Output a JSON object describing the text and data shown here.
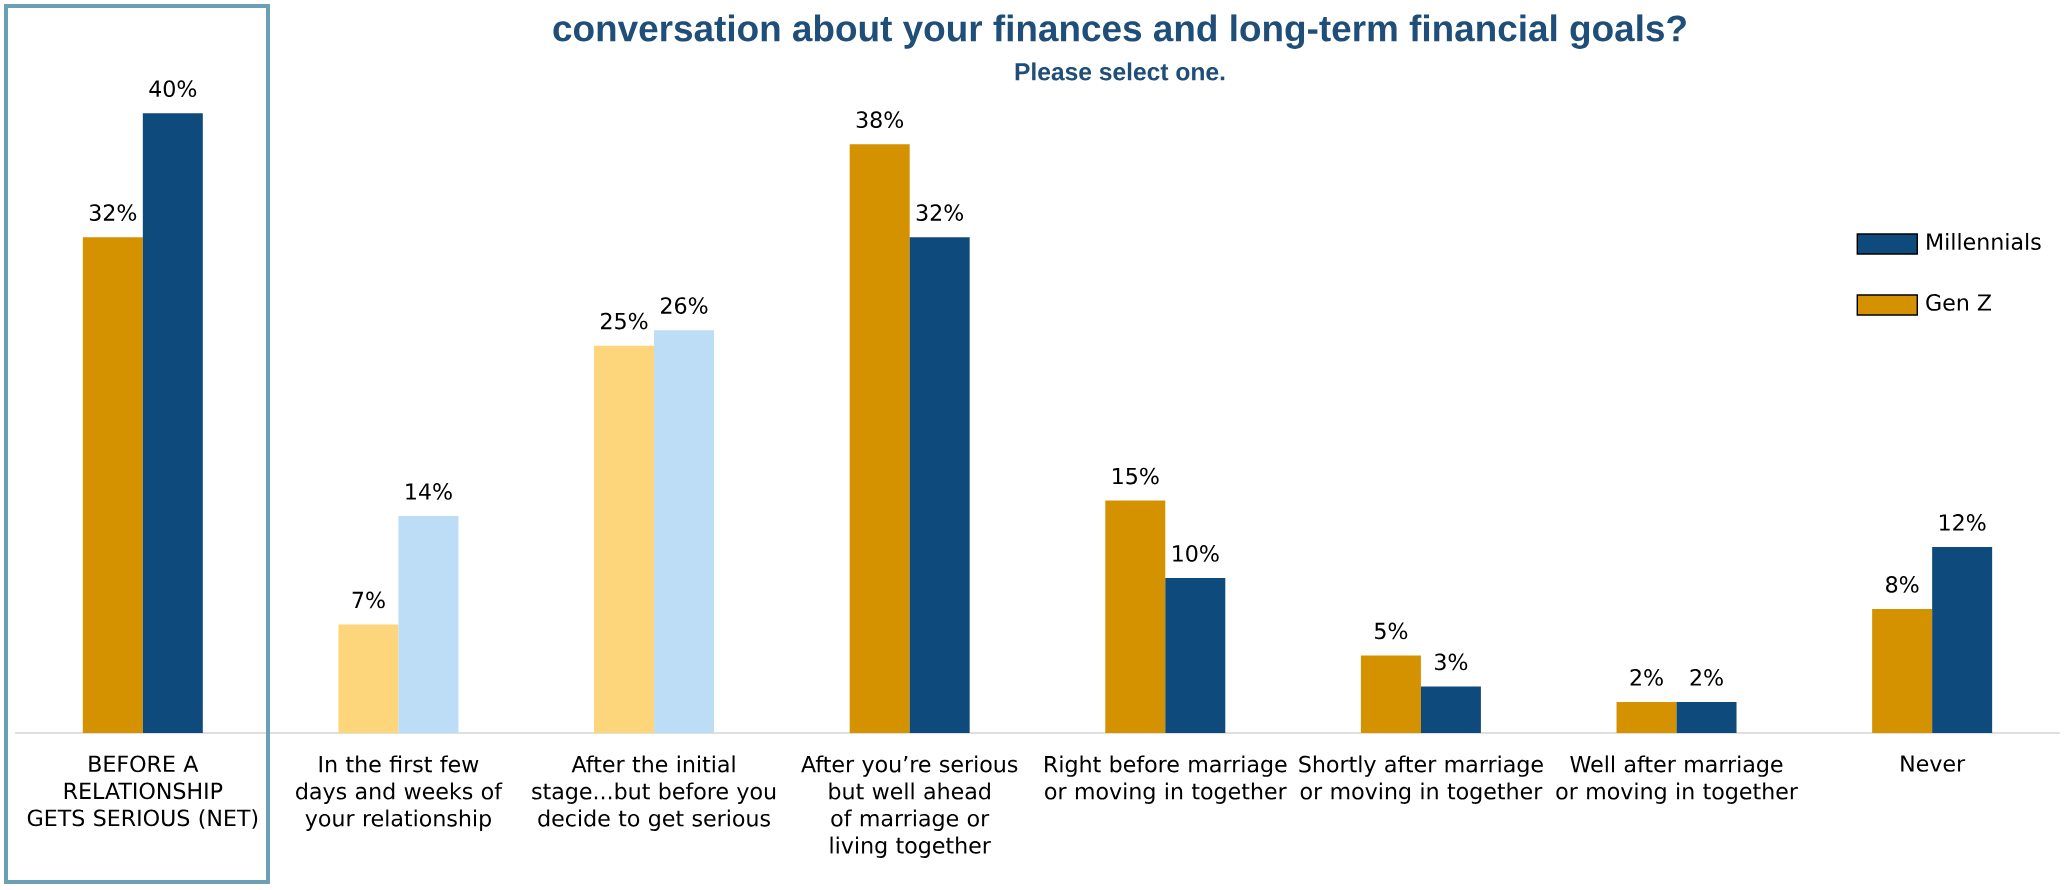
{
  "chart_data": {
    "type": "bar",
    "title": "conversation about your finances and long-term financial goals?",
    "subtitle": "Please select one.",
    "categories": [
      "BEFORE A RELATIONSHIP GETS SERIOUS (NET)",
      "In the first few days and weeks of your relationship",
      "After the initial stage...but before you decide to get serious",
      "After you’re serious but well ahead of marriage or living together",
      "Right before marriage or moving in together",
      "Shortly after marriage or moving in together",
      "Well after marriage or moving in together",
      "Never"
    ],
    "series": [
      {
        "name": "Gen Z",
        "color": "#d49100",
        "colors": [
          "#d49100",
          "#fdd57b",
          "#fdd57b",
          "#d49100",
          "#d49100",
          "#d49100",
          "#d49100",
          "#d49100"
        ],
        "values": [
          32,
          7,
          25,
          38,
          15,
          5,
          2,
          8
        ],
        "value_labels": [
          "32%",
          "7%",
          "25%",
          "38%",
          "15%",
          "5%",
          "2%",
          "8%"
        ]
      },
      {
        "name": "Millennials",
        "color": "#0f4a7c",
        "colors": [
          "#0f4a7c",
          "#bddcf6",
          "#bddcf6",
          "#0f4a7c",
          "#0f4a7c",
          "#0f4a7c",
          "#0f4a7c",
          "#0f4a7c"
        ],
        "values": [
          40,
          14,
          26,
          32,
          10,
          3,
          2,
          12
        ],
        "value_labels": [
          "40%",
          "14%",
          "26%",
          "32%",
          "10%",
          "3%",
          "2%",
          "12%"
        ]
      }
    ],
    "legend": "right"
  }
}
